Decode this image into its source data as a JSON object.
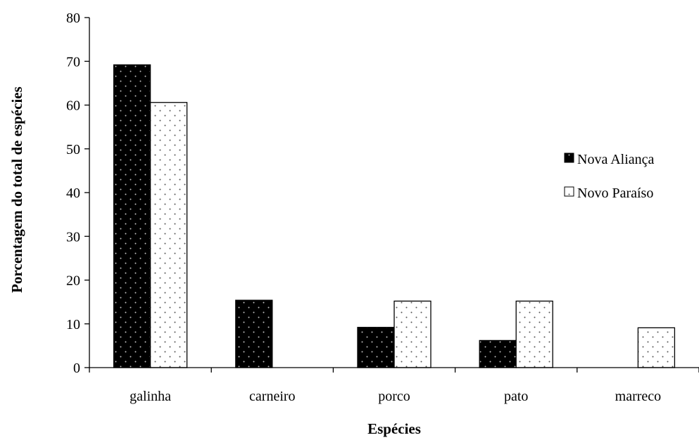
{
  "chart_data": {
    "type": "bar",
    "title": "",
    "xlabel": "Espécies",
    "ylabel": "Porcentagem do total de espécies",
    "categories": [
      "galinha",
      "carneiro",
      "porco",
      "pato",
      "marreco"
    ],
    "series": [
      {
        "name": "Nova Aliança",
        "values": [
          69.2,
          15.4,
          9.2,
          6.2,
          0
        ],
        "color": "#000000",
        "pattern": "white-dots-on-black"
      },
      {
        "name": "Novo Paraíso",
        "values": [
          60.6,
          0,
          15.2,
          15.2,
          9.1
        ],
        "color": "#ffffff",
        "pattern": "black-dots-on-white"
      }
    ],
    "ylim": [
      0,
      80
    ],
    "yticks": [
      "0",
      "10",
      "20",
      "30",
      "40",
      "50",
      "60",
      "70",
      "80"
    ],
    "grid": false,
    "legend_position": "right"
  }
}
